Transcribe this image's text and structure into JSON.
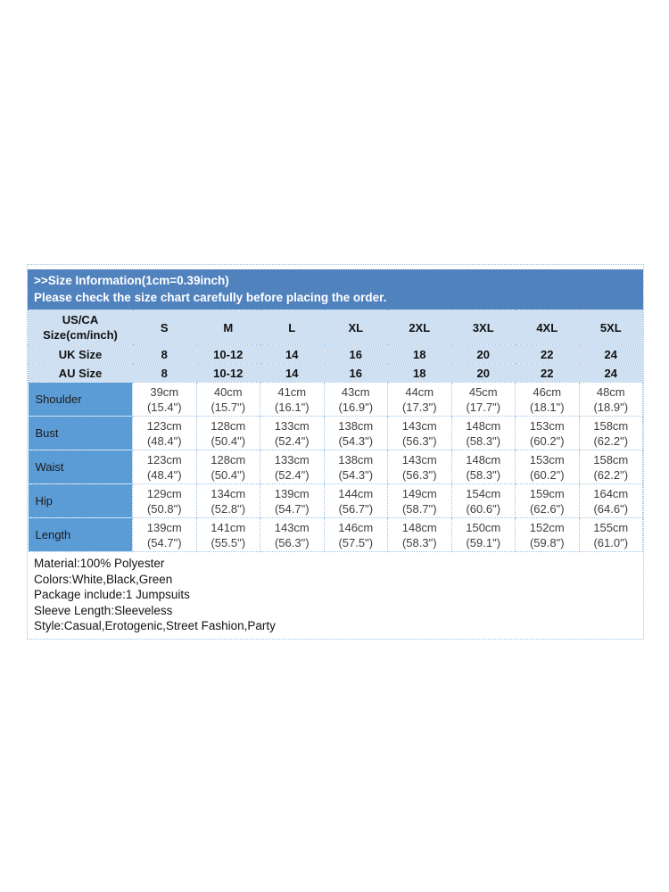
{
  "colors": {
    "band_bg": "#5082be",
    "band_text": "#ffffff",
    "light_row_bg": "#cfe0f2",
    "label_column_bg": "#5c9cd6",
    "grid_border": "#9dc3e6",
    "data_text": "#3f3f3f"
  },
  "header": {
    "title": ">>Size Information(1cm=0.39inch)",
    "subtitle": "Please check the size chart carefully before placing the order."
  },
  "size_table": {
    "corner": {
      "line1": "US/CA",
      "line2": "Size(cm/inch)"
    },
    "sizes": [
      "S",
      "M",
      "L",
      "XL",
      "2XL",
      "3XL",
      "4XL",
      "5XL"
    ],
    "uk": {
      "label": "UK Size",
      "values": [
        "8",
        "10-12",
        "14",
        "16",
        "18",
        "20",
        "22",
        "24"
      ]
    },
    "au": {
      "label": "AU Size",
      "values": [
        "8",
        "10-12",
        "14",
        "16",
        "18",
        "20",
        "22",
        "24"
      ]
    },
    "measurements": [
      {
        "label": "Shoulder",
        "values": [
          {
            "cm": "39cm",
            "inch": "(15.4\")"
          },
          {
            "cm": "40cm",
            "inch": "(15.7\")"
          },
          {
            "cm": "41cm",
            "inch": "(16.1\")"
          },
          {
            "cm": "43cm",
            "inch": "(16.9\")"
          },
          {
            "cm": "44cm",
            "inch": "(17.3\")"
          },
          {
            "cm": "45cm",
            "inch": "(17.7\")"
          },
          {
            "cm": "46cm",
            "inch": "(18.1\")"
          },
          {
            "cm": "48cm",
            "inch": "(18.9\")"
          }
        ]
      },
      {
        "label": "Bust",
        "values": [
          {
            "cm": "123cm",
            "inch": "(48.4\")"
          },
          {
            "cm": "128cm",
            "inch": "(50.4\")"
          },
          {
            "cm": "133cm",
            "inch": "(52.4\")"
          },
          {
            "cm": "138cm",
            "inch": "(54.3\")"
          },
          {
            "cm": "143cm",
            "inch": "(56.3\")"
          },
          {
            "cm": "148cm",
            "inch": "(58.3\")"
          },
          {
            "cm": "153cm",
            "inch": "(60.2\")"
          },
          {
            "cm": "158cm",
            "inch": "(62.2\")"
          }
        ]
      },
      {
        "label": "Waist",
        "values": [
          {
            "cm": "123cm",
            "inch": "(48.4\")"
          },
          {
            "cm": "128cm",
            "inch": "(50.4\")"
          },
          {
            "cm": "133cm",
            "inch": "(52.4\")"
          },
          {
            "cm": "138cm",
            "inch": "(54.3\")"
          },
          {
            "cm": "143cm",
            "inch": "(56.3\")"
          },
          {
            "cm": "148cm",
            "inch": "(58.3\")"
          },
          {
            "cm": "153cm",
            "inch": "(60.2\")"
          },
          {
            "cm": "158cm",
            "inch": "(62.2\")"
          }
        ]
      },
      {
        "label": "Hip",
        "values": [
          {
            "cm": "129cm",
            "inch": "(50.8\")"
          },
          {
            "cm": "134cm",
            "inch": "(52.8\")"
          },
          {
            "cm": "139cm",
            "inch": "(54.7\")"
          },
          {
            "cm": "144cm",
            "inch": "(56.7\")"
          },
          {
            "cm": "149cm",
            "inch": "(58.7\")"
          },
          {
            "cm": "154cm",
            "inch": "(60.6\")"
          },
          {
            "cm": "159cm",
            "inch": "(62.6\")"
          },
          {
            "cm": "164cm",
            "inch": "(64.6\")"
          }
        ]
      },
      {
        "label": "Length",
        "values": [
          {
            "cm": "139cm",
            "inch": "(54.7\")"
          },
          {
            "cm": "141cm",
            "inch": "(55.5\")"
          },
          {
            "cm": "143cm",
            "inch": "(56.3\")"
          },
          {
            "cm": "146cm",
            "inch": "(57.5\")"
          },
          {
            "cm": "148cm",
            "inch": "(58.3\")"
          },
          {
            "cm": "150cm",
            "inch": "(59.1\")"
          },
          {
            "cm": "152cm",
            "inch": "(59.8\")"
          },
          {
            "cm": "155cm",
            "inch": "(61.0\")"
          }
        ]
      }
    ]
  },
  "details": {
    "lines": [
      "Material:100% Polyester",
      "Colors:White,Black,Green",
      "Package include:1 Jumpsuits",
      "Sleeve Length:Sleeveless",
      "Style:Casual,Erotogenic,Street Fashion,Party"
    ]
  }
}
